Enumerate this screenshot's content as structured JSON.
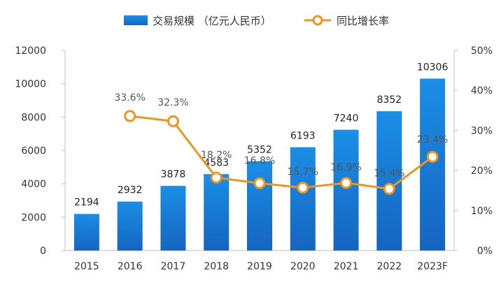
{
  "chart_data": {
    "type": "bar+line",
    "categories": [
      "2015",
      "2016",
      "2017",
      "2018",
      "2019",
      "2020",
      "2021",
      "2022",
      "2023F"
    ],
    "series": [
      {
        "name": "交易规模 （亿元人民币）",
        "kind": "bar",
        "axis": "left",
        "values": [
          2194,
          2932,
          3878,
          4583,
          5352,
          6193,
          7240,
          8352,
          10306
        ],
        "labels": [
          "2194",
          "2932",
          "3878",
          "4583",
          "5352",
          "6193",
          "7240",
          "8352",
          "10306"
        ],
        "color": "#1a7dd7"
      },
      {
        "name": "同比增长率",
        "kind": "line",
        "axis": "right",
        "values": [
          null,
          33.6,
          32.3,
          18.2,
          16.8,
          15.7,
          16.9,
          15.4,
          23.4
        ],
        "labels": [
          "",
          "33.6%",
          "32.3%",
          "18.2%",
          "16.8%",
          "15.7%",
          "16.9%",
          "15.4%",
          "23.4%"
        ],
        "color": "#f0941d"
      }
    ],
    "y_left": {
      "range": [
        0,
        12000
      ],
      "ticks": [
        "0",
        "2000",
        "4000",
        "6000",
        "8000",
        "10000",
        "12000"
      ]
    },
    "y_right": {
      "range": [
        0,
        50
      ],
      "ticks": [
        "0%",
        "10%",
        "20%",
        "30%",
        "40%",
        "50%"
      ]
    },
    "legend_position": "top-center",
    "grid": false
  }
}
